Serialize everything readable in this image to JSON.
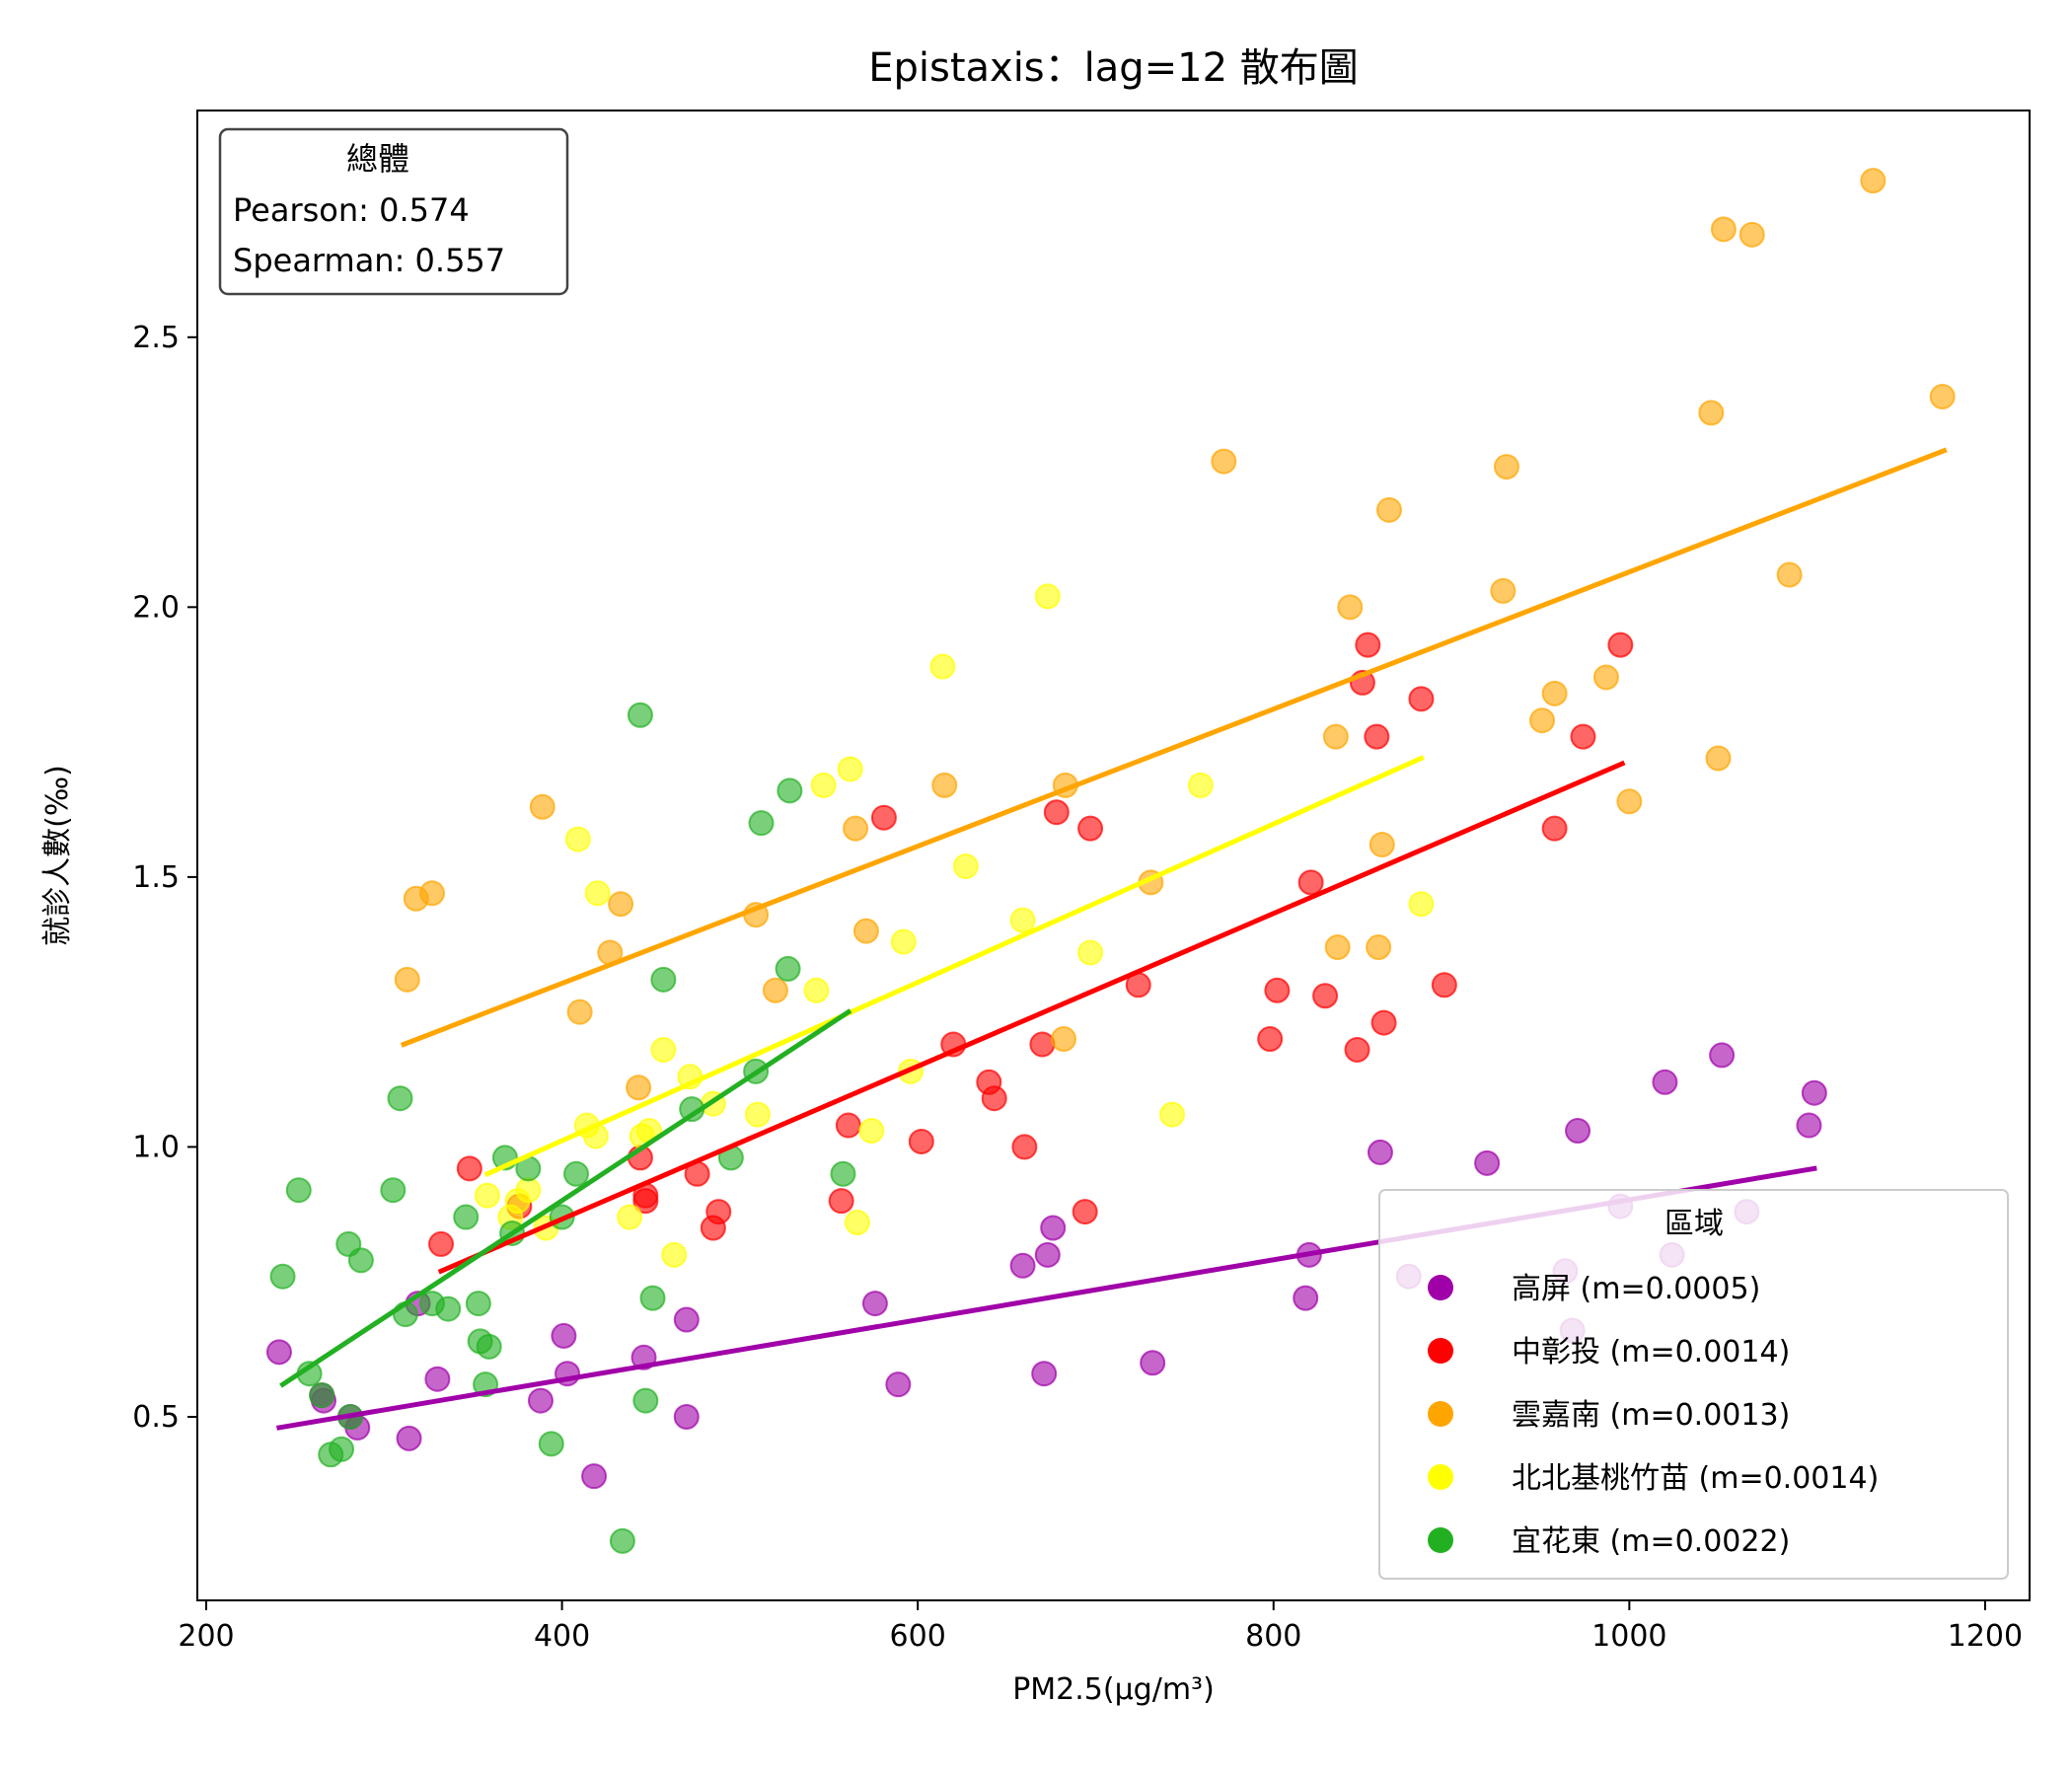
{
  "chart_data": {
    "type": "scatter",
    "title": "Epistaxis：lag=12 散布圖",
    "xlabel": "PM2.5(μg/m³)",
    "ylabel": "就診人數(‰)",
    "xlim": [
      195,
      1225
    ],
    "ylim": [
      0.16,
      2.92
    ],
    "xticks": [
      200,
      400,
      600,
      800,
      1000,
      1200
    ],
    "yticks": [
      0.5,
      1.0,
      1.5,
      2.0,
      2.5
    ],
    "xtick_labels": [
      "200",
      "400",
      "600",
      "800",
      "1000",
      "1200"
    ],
    "ytick_labels": [
      "0.5",
      "1.0",
      "1.5",
      "2.0",
      "2.5"
    ],
    "grid": false,
    "stats_box": {
      "title": "總體",
      "pearson": "Pearson: 0.574",
      "spearman": "Spearman: 0.557",
      "placement": "top-left"
    },
    "legend": {
      "title": "區域",
      "placement": "lower-right"
    },
    "series": [
      {
        "name": "高屏",
        "legend_label": "高屏 (m=0.0005)",
        "color": "#a000a8",
        "fit": [
          [
            241,
            0.48
          ],
          [
            1104,
            0.96
          ]
        ],
        "points": [
          [
            241,
            0.62
          ],
          [
            265,
            0.54
          ],
          [
            266,
            0.53
          ],
          [
            281,
            0.5
          ],
          [
            285,
            0.48
          ],
          [
            314,
            0.46
          ],
          [
            319,
            0.71
          ],
          [
            330,
            0.57
          ],
          [
            388,
            0.53
          ],
          [
            401,
            0.65
          ],
          [
            403,
            0.58
          ],
          [
            418,
            0.39
          ],
          [
            446,
            0.61
          ],
          [
            470,
            0.68
          ],
          [
            470,
            0.5
          ],
          [
            576,
            0.71
          ],
          [
            589,
            0.56
          ],
          [
            659,
            0.78
          ],
          [
            671,
            0.58
          ],
          [
            673,
            0.8
          ],
          [
            676,
            0.85
          ],
          [
            732,
            0.6
          ],
          [
            818,
            0.72
          ],
          [
            820,
            0.8
          ],
          [
            860,
            0.99
          ],
          [
            876,
            0.76
          ],
          [
            920,
            0.97
          ],
          [
            964,
            0.77
          ],
          [
            968,
            0.66
          ],
          [
            971,
            1.03
          ],
          [
            995,
            0.89
          ],
          [
            1020,
            1.12
          ],
          [
            1024,
            0.8
          ],
          [
            1052,
            1.17
          ],
          [
            1066,
            0.88
          ],
          [
            1101,
            1.04
          ],
          [
            1104,
            1.1
          ]
        ]
      },
      {
        "name": "中彰投",
        "legend_label": "中彰投 (m=0.0014)",
        "color": "#ff0000",
        "fit": [
          [
            332,
            0.77
          ],
          [
            996,
            1.71
          ]
        ],
        "points": [
          [
            332,
            0.82
          ],
          [
            348,
            0.96
          ],
          [
            376,
            0.89
          ],
          [
            444,
            0.98
          ],
          [
            447,
            0.91
          ],
          [
            447,
            0.9
          ],
          [
            476,
            0.95
          ],
          [
            485,
            0.85
          ],
          [
            488,
            0.88
          ],
          [
            557,
            0.9
          ],
          [
            561,
            1.04
          ],
          [
            581,
            1.61
          ],
          [
            602,
            1.01
          ],
          [
            620,
            1.19
          ],
          [
            640,
            1.12
          ],
          [
            643,
            1.09
          ],
          [
            660,
            1.0
          ],
          [
            670,
            1.19
          ],
          [
            678,
            1.62
          ],
          [
            694,
            0.88
          ],
          [
            697,
            1.59
          ],
          [
            724,
            1.3
          ],
          [
            798,
            1.2
          ],
          [
            802,
            1.29
          ],
          [
            821,
            1.49
          ],
          [
            829,
            1.28
          ],
          [
            847,
            1.18
          ],
          [
            850,
            1.86
          ],
          [
            853,
            1.93
          ],
          [
            858,
            1.76
          ],
          [
            862,
            1.23
          ],
          [
            883,
            1.83
          ],
          [
            896,
            1.3
          ],
          [
            958,
            1.59
          ],
          [
            974,
            1.76
          ],
          [
            995,
            1.93
          ]
        ]
      },
      {
        "name": "雲嘉南",
        "legend_label": "雲嘉南 (m=0.0013)",
        "color": "#ffa500",
        "fit": [
          [
            311,
            1.19
          ],
          [
            1177,
            2.29
          ]
        ],
        "points": [
          [
            313,
            1.31
          ],
          [
            318,
            1.46
          ],
          [
            327,
            1.47
          ],
          [
            389,
            1.63
          ],
          [
            410,
            1.25
          ],
          [
            427,
            1.36
          ],
          [
            433,
            1.45
          ],
          [
            443,
            1.11
          ],
          [
            509,
            1.43
          ],
          [
            520,
            1.29
          ],
          [
            565,
            1.59
          ],
          [
            571,
            1.4
          ],
          [
            615,
            1.67
          ],
          [
            682,
            1.2
          ],
          [
            683,
            1.67
          ],
          [
            731,
            1.49
          ],
          [
            772,
            2.27
          ],
          [
            835,
            1.76
          ],
          [
            836,
            1.37
          ],
          [
            843,
            2.0
          ],
          [
            859,
            1.37
          ],
          [
            861,
            1.56
          ],
          [
            865,
            2.18
          ],
          [
            929,
            2.03
          ],
          [
            931,
            2.26
          ],
          [
            951,
            1.79
          ],
          [
            958,
            1.84
          ],
          [
            987,
            1.87
          ],
          [
            1000,
            1.64
          ],
          [
            1046,
            2.36
          ],
          [
            1050,
            1.72
          ],
          [
            1053,
            2.7
          ],
          [
            1069,
            2.69
          ],
          [
            1090,
            2.06
          ],
          [
            1137,
            2.79
          ],
          [
            1176,
            2.39
          ]
        ]
      },
      {
        "name": "北北基桃竹苗",
        "legend_label": "北北基桃竹苗 (m=0.0014)",
        "color": "#ffff00",
        "fit": [
          [
            358,
            0.95
          ],
          [
            883,
            1.72
          ]
        ],
        "points": [
          [
            358,
            0.91
          ],
          [
            371,
            0.87
          ],
          [
            375,
            0.9
          ],
          [
            381,
            0.92
          ],
          [
            391,
            0.85
          ],
          [
            409,
            1.57
          ],
          [
            414,
            1.04
          ],
          [
            419,
            1.02
          ],
          [
            420,
            1.47
          ],
          [
            438,
            0.87
          ],
          [
            445,
            1.02
          ],
          [
            449,
            1.03
          ],
          [
            457,
            1.18
          ],
          [
            463,
            0.8
          ],
          [
            472,
            1.13
          ],
          [
            485,
            1.08
          ],
          [
            510,
            1.06
          ],
          [
            543,
            1.29
          ],
          [
            547,
            1.67
          ],
          [
            562,
            1.7
          ],
          [
            566,
            0.86
          ],
          [
            574,
            1.03
          ],
          [
            592,
            1.38
          ],
          [
            596,
            1.14
          ],
          [
            614,
            1.89
          ],
          [
            627,
            1.52
          ],
          [
            659,
            1.42
          ],
          [
            673,
            2.02
          ],
          [
            697,
            1.36
          ],
          [
            743,
            1.06
          ],
          [
            759,
            1.67
          ],
          [
            883,
            1.45
          ]
        ]
      },
      {
        "name": "宜花東",
        "legend_label": "宜花東 (m=0.0022)",
        "color": "#22b022",
        "fit": [
          [
            243,
            0.56
          ],
          [
            561,
            1.25
          ]
        ],
        "points": [
          [
            243,
            0.76
          ],
          [
            252,
            0.92
          ],
          [
            258,
            0.58
          ],
          [
            265,
            0.54
          ],
          [
            270,
            0.43
          ],
          [
            276,
            0.44
          ],
          [
            280,
            0.82
          ],
          [
            281,
            0.5
          ],
          [
            287,
            0.79
          ],
          [
            305,
            0.92
          ],
          [
            309,
            1.09
          ],
          [
            312,
            0.69
          ],
          [
            327,
            0.71
          ],
          [
            336,
            0.7
          ],
          [
            346,
            0.87
          ],
          [
            353,
            0.71
          ],
          [
            354,
            0.64
          ],
          [
            357,
            0.56
          ],
          [
            359,
            0.63
          ],
          [
            368,
            0.98
          ],
          [
            372,
            0.84
          ],
          [
            381,
            0.96
          ],
          [
            394,
            0.45
          ],
          [
            400,
            0.87
          ],
          [
            408,
            0.95
          ],
          [
            434,
            0.27
          ],
          [
            444,
            1.8
          ],
          [
            447,
            0.53
          ],
          [
            451,
            0.72
          ],
          [
            457,
            1.31
          ],
          [
            473,
            1.07
          ],
          [
            495,
            0.98
          ],
          [
            509,
            1.14
          ],
          [
            512,
            1.6
          ],
          [
            527,
            1.33
          ],
          [
            528,
            1.66
          ],
          [
            558,
            0.95
          ]
        ]
      }
    ]
  }
}
